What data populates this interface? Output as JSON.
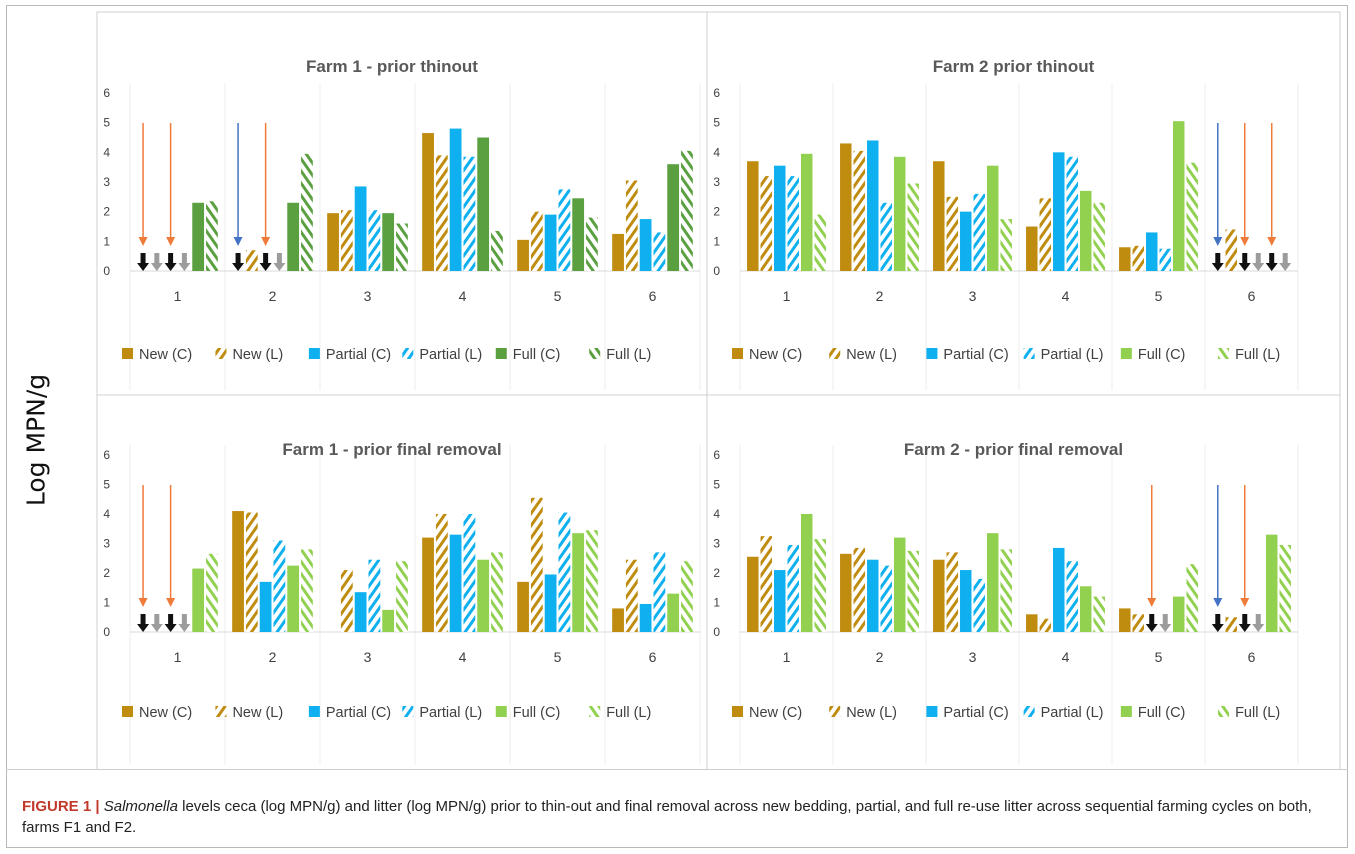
{
  "y_axis_label": "Log MPN/g",
  "caption": {
    "label": "FIGURE 1 |",
    "italic": "Salmonella",
    "text": " levels ceca (log MPN/g) and litter (log MPN/g) prior to thin-out and final removal across new bedding, partial, and full re-use litter across sequential farming cycles on both, farms F1 and F2."
  },
  "colors": {
    "new": "#c08c10",
    "partial": "#0fb0ef",
    "full_farm1_thinout": "#5aa040",
    "full_light": "#92d050",
    "arrow_orange": "#ef7b3a",
    "arrow_blue": "#4472c4",
    "down_black": "#111111",
    "down_gray": "#9c9c9c"
  },
  "legend_labels": [
    "New (C)",
    "New (L)",
    "Partial (C)",
    "Partial (L)",
    "Full (C)",
    "Full (L)"
  ],
  "chart_data": [
    {
      "type": "bar",
      "title": "Farm 1 - prior thinout",
      "categories": [
        "1",
        "2",
        "3",
        "4",
        "5",
        "6"
      ],
      "yticks": [
        "0",
        "1",
        "2",
        "3",
        "4",
        "5",
        "6"
      ],
      "ylim": [
        0,
        6
      ],
      "series": [
        {
          "name": "New (C)",
          "values": [
            null,
            null,
            1.95,
            4.65,
            1.05,
            1.25
          ]
        },
        {
          "name": "New (L)",
          "values": [
            null,
            0.7,
            2.05,
            3.9,
            2.0,
            3.05
          ]
        },
        {
          "name": "Partial (C)",
          "values": [
            null,
            null,
            2.85,
            4.8,
            1.9,
            1.75
          ]
        },
        {
          "name": "Partial (L)",
          "values": [
            null,
            null,
            2.05,
            3.85,
            2.75,
            1.3
          ]
        },
        {
          "name": "Full (C)",
          "values": [
            2.3,
            2.3,
            1.95,
            4.5,
            2.45,
            3.6
          ]
        },
        {
          "name": "Full (L)",
          "values": [
            2.35,
            3.95,
            1.6,
            1.35,
            1.8,
            4.05
          ]
        }
      ],
      "below_detection": [
        {
          "category": "1",
          "series": "New (C)",
          "color": "black"
        },
        {
          "category": "1",
          "series": "New (L)",
          "color": "gray"
        },
        {
          "category": "1",
          "series": "Partial (C)",
          "color": "black"
        },
        {
          "category": "1",
          "series": "Partial (L)",
          "color": "gray"
        },
        {
          "category": "2",
          "series": "New (C)",
          "color": "black"
        },
        {
          "category": "2",
          "series": "Partial (C)",
          "color": "black"
        },
        {
          "category": "2",
          "series": "Partial (L)",
          "color": "gray"
        }
      ],
      "arrows": [
        {
          "category": "1",
          "series": "New (C)",
          "color": "orange"
        },
        {
          "category": "1",
          "series": "Partial (C)",
          "color": "orange"
        },
        {
          "category": "2",
          "series": "New (C)",
          "color": "blue"
        },
        {
          "category": "2",
          "series": "Partial (C)",
          "color": "orange"
        }
      ],
      "full_color": "full_farm1_thinout"
    },
    {
      "type": "bar",
      "title": "Farm 2 prior thinout",
      "categories": [
        "1",
        "2",
        "3",
        "4",
        "5",
        "6"
      ],
      "yticks": [
        "0",
        "1",
        "2",
        "3",
        "4",
        "5",
        "6"
      ],
      "ylim": [
        0,
        6
      ],
      "series": [
        {
          "name": "New (C)",
          "values": [
            3.7,
            4.3,
            3.7,
            1.5,
            0.8,
            null
          ]
        },
        {
          "name": "New (L)",
          "values": [
            3.2,
            4.05,
            2.5,
            2.45,
            0.85,
            1.4
          ]
        },
        {
          "name": "Partial (C)",
          "values": [
            3.55,
            4.4,
            2.0,
            4.0,
            1.3,
            null
          ]
        },
        {
          "name": "Partial (L)",
          "values": [
            3.2,
            2.3,
            2.6,
            3.85,
            0.75,
            null
          ]
        },
        {
          "name": "Full (C)",
          "values": [
            3.95,
            3.85,
            3.55,
            2.7,
            5.05,
            null
          ]
        },
        {
          "name": "Full (L)",
          "values": [
            1.9,
            2.95,
            1.75,
            2.3,
            3.65,
            null
          ]
        }
      ],
      "below_detection": [
        {
          "category": "6",
          "series": "New (C)",
          "color": "black"
        },
        {
          "category": "6",
          "series": "Partial (C)",
          "color": "black"
        },
        {
          "category": "6",
          "series": "Partial (L)",
          "color": "gray"
        },
        {
          "category": "6",
          "series": "Full (C)",
          "color": "black"
        },
        {
          "category": "6",
          "series": "Full (L)",
          "color": "gray"
        }
      ],
      "arrows": [
        {
          "category": "6",
          "series": "New (C)",
          "color": "blue"
        },
        {
          "category": "6",
          "series": "Partial (C)",
          "color": "orange"
        },
        {
          "category": "6",
          "series": "Full (C)",
          "color": "orange"
        }
      ],
      "full_color": "full_light"
    },
    {
      "type": "bar",
      "title": "Farm 1 - prior final removal",
      "categories": [
        "1",
        "2",
        "3",
        "4",
        "5",
        "6"
      ],
      "yticks": [
        "0",
        "1",
        "2",
        "3",
        "4",
        "5",
        "6"
      ],
      "ylim": [
        0,
        6
      ],
      "series": [
        {
          "name": "New (C)",
          "values": [
            null,
            4.1,
            null,
            3.2,
            1.7,
            0.8
          ]
        },
        {
          "name": "New (L)",
          "values": [
            null,
            4.05,
            2.1,
            4.0,
            4.55,
            2.45
          ]
        },
        {
          "name": "Partial (C)",
          "values": [
            null,
            1.7,
            1.35,
            3.3,
            1.95,
            0.95
          ]
        },
        {
          "name": "Partial (L)",
          "values": [
            null,
            3.1,
            2.45,
            4.0,
            4.05,
            2.7
          ]
        },
        {
          "name": "Full (C)",
          "values": [
            2.15,
            2.25,
            0.75,
            2.45,
            3.35,
            1.3
          ]
        },
        {
          "name": "Full (L)",
          "values": [
            2.65,
            2.8,
            2.4,
            2.7,
            3.45,
            2.4
          ]
        }
      ],
      "below_detection": [
        {
          "category": "1",
          "series": "New (C)",
          "color": "black"
        },
        {
          "category": "1",
          "series": "New (L)",
          "color": "gray"
        },
        {
          "category": "1",
          "series": "Partial (C)",
          "color": "black"
        },
        {
          "category": "1",
          "series": "Partial (L)",
          "color": "gray"
        }
      ],
      "arrows": [
        {
          "category": "1",
          "series": "New (C)",
          "color": "orange"
        },
        {
          "category": "1",
          "series": "Partial (C)",
          "color": "orange"
        }
      ],
      "full_color": "full_light"
    },
    {
      "type": "bar",
      "title": "Farm 2 - prior final removal",
      "categories": [
        "1",
        "2",
        "3",
        "4",
        "5",
        "6"
      ],
      "yticks": [
        "0",
        "1",
        "2",
        "3",
        "4",
        "5",
        "6"
      ],
      "ylim": [
        0,
        6
      ],
      "series": [
        {
          "name": "New (C)",
          "values": [
            2.55,
            2.65,
            2.45,
            0.6,
            0.8,
            null
          ]
        },
        {
          "name": "New (L)",
          "values": [
            3.25,
            2.85,
            2.7,
            0.45,
            0.6,
            0.5
          ]
        },
        {
          "name": "Partial (C)",
          "values": [
            2.1,
            2.45,
            2.1,
            2.85,
            null,
            null
          ]
        },
        {
          "name": "Partial (L)",
          "values": [
            2.95,
            2.25,
            1.8,
            2.4,
            null,
            null
          ]
        },
        {
          "name": "Full (C)",
          "values": [
            4.0,
            3.2,
            3.35,
            1.55,
            1.2,
            3.3
          ]
        },
        {
          "name": "Full (L)",
          "values": [
            3.15,
            2.75,
            2.8,
            1.2,
            2.3,
            2.95
          ]
        }
      ],
      "below_detection": [
        {
          "category": "5",
          "series": "Partial (C)",
          "color": "black"
        },
        {
          "category": "5",
          "series": "Partial (L)",
          "color": "gray"
        },
        {
          "category": "6",
          "series": "New (C)",
          "color": "black"
        },
        {
          "category": "6",
          "series": "Partial (C)",
          "color": "black"
        },
        {
          "category": "6",
          "series": "Partial (L)",
          "color": "gray"
        }
      ],
      "arrows": [
        {
          "category": "5",
          "series": "Partial (C)",
          "color": "orange"
        },
        {
          "category": "6",
          "series": "New (C)",
          "color": "blue"
        },
        {
          "category": "6",
          "series": "Partial (C)",
          "color": "orange"
        }
      ],
      "full_color": "full_light"
    }
  ]
}
